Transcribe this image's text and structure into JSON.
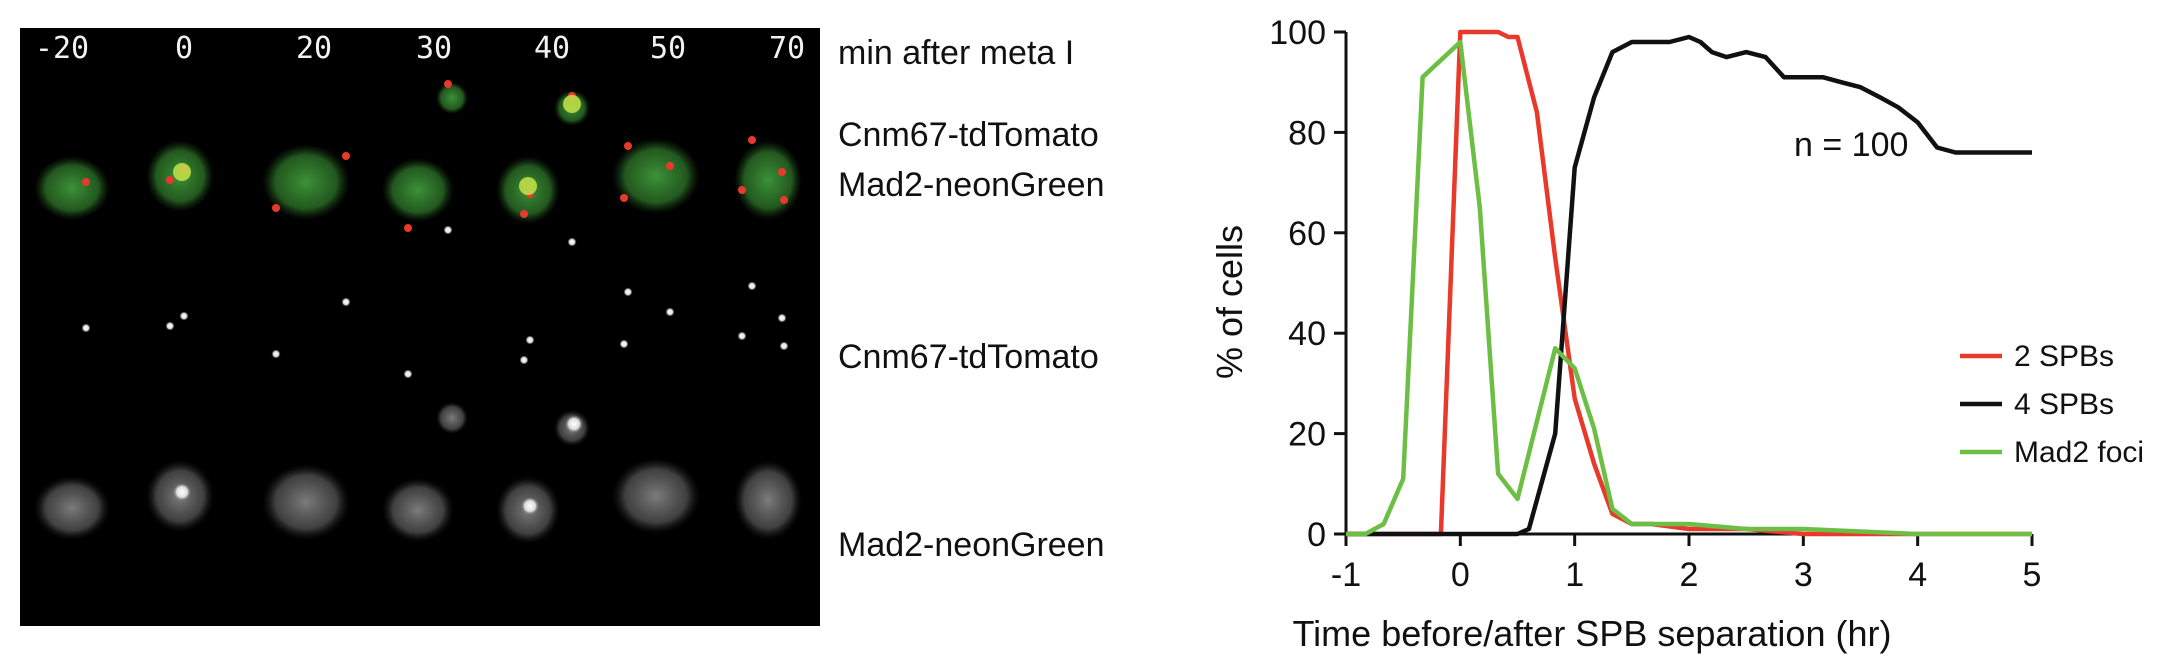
{
  "micrograph": {
    "timepoints": [
      "-20",
      "0",
      "20",
      "30",
      "40",
      "50",
      "70"
    ],
    "time_label": "min after meta I",
    "merge_label_red": "Cnm67-tdTomato",
    "merge_label_green": "Mad2-neonGreen",
    "row2_label": "Cnm67-tdTomato",
    "row3_label": "Mad2-neonGreen",
    "colors": {
      "red": "#e8392b",
      "green": "#6cbf44"
    }
  },
  "chart_data": {
    "type": "line",
    "xlabel": "Time before/after SPB separation (hr)",
    "ylabel": "% of cells",
    "xlim": [
      -1,
      5
    ],
    "ylim": [
      0,
      100
    ],
    "xticks": [
      -1,
      0,
      1,
      2,
      3,
      4,
      5
    ],
    "yticks": [
      0,
      20,
      40,
      60,
      80,
      100
    ],
    "annotation": "n = 100",
    "legend_position": "right",
    "series": [
      {
        "name": "2 SPBs",
        "color": "#e8392b",
        "x": [
          -1,
          -0.17,
          0,
          0.2,
          0.33,
          0.42,
          0.5,
          0.67,
          0.83,
          1.0,
          1.17,
          1.33,
          1.5,
          1.67,
          2.0,
          2.5,
          3.0,
          4.0,
          5.0
        ],
        "y": [
          0,
          0,
          100,
          100,
          100,
          99,
          99,
          84,
          55,
          27,
          14,
          4,
          2,
          2,
          1,
          1,
          0,
          0,
          0
        ]
      },
      {
        "name": "4 SPBs",
        "color": "#111111",
        "x": [
          -1,
          0,
          0.5,
          0.6,
          0.83,
          1.0,
          1.17,
          1.33,
          1.5,
          1.67,
          1.83,
          2.0,
          2.1,
          2.2,
          2.33,
          2.5,
          2.67,
          2.83,
          3.0,
          3.17,
          3.33,
          3.5,
          3.67,
          3.83,
          4.0,
          4.17,
          4.33,
          4.5,
          4.67,
          4.83,
          5.0
        ],
        "y": [
          0,
          0,
          0,
          1,
          20,
          73,
          87,
          96,
          98,
          98,
          98,
          99,
          98,
          96,
          95,
          96,
          95,
          91,
          91,
          91,
          90,
          89,
          87,
          85,
          82,
          77,
          76,
          76,
          76,
          76,
          76
        ]
      },
      {
        "name": "Mad2 foci",
        "color": "#6cbf44",
        "x": [
          -1,
          -0.83,
          -0.67,
          -0.5,
          -0.33,
          0,
          0.17,
          0.33,
          0.5,
          0.83,
          1.0,
          1.17,
          1.33,
          1.5,
          2.0,
          2.5,
          3.0,
          4.0,
          5.0
        ],
        "y": [
          0,
          0,
          2,
          11,
          91,
          98,
          65,
          12,
          7,
          37,
          33,
          21,
          5,
          2,
          2,
          1,
          1,
          0,
          0
        ]
      }
    ]
  }
}
